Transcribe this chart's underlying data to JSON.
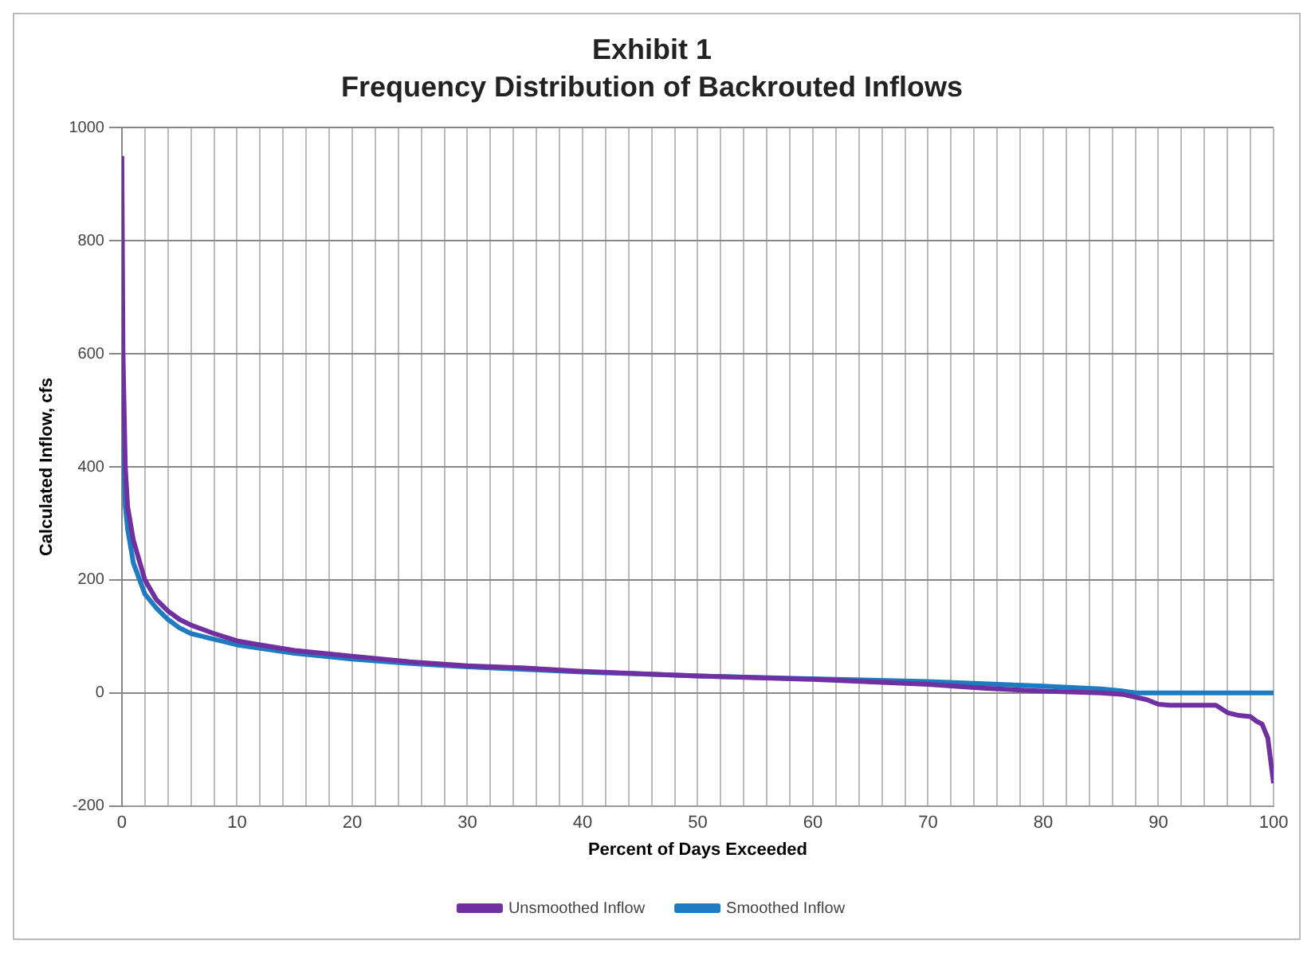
{
  "chart_data": {
    "type": "line",
    "title": "Exhibit 1",
    "subtitle": "Frequency Distribution of Backrouted Inflows",
    "xlabel": "Percent of Days Exceeded",
    "ylabel": "Calculated Inflow, cfs",
    "xlim": [
      0,
      100
    ],
    "ylim": [
      -200,
      1000
    ],
    "yticks": [
      -200,
      0,
      200,
      400,
      600,
      800,
      1000
    ],
    "xticks": [
      0,
      {
        "value": 2,
        "label": null
      },
      {
        "value": 4,
        "label": null
      },
      {
        "value": 6,
        "label": null
      },
      {
        "value": 8,
        "label": null
      },
      10,
      {
        "value": 12,
        "label": null
      },
      {
        "value": 14,
        "label": null
      },
      {
        "value": 16,
        "label": null
      },
      {
        "value": 18,
        "label": null
      },
      20,
      {
        "value": 22,
        "label": null
      },
      {
        "value": 24,
        "label": null
      },
      {
        "value": 26,
        "label": null
      },
      {
        "value": 28,
        "label": null
      },
      30,
      {
        "value": 32,
        "label": null
      },
      {
        "value": 34,
        "label": null
      },
      {
        "value": 36,
        "label": null
      },
      {
        "value": 38,
        "label": null
      },
      40,
      {
        "value": 42,
        "label": null
      },
      {
        "value": 44,
        "label": null
      },
      {
        "value": 46,
        "label": null
      },
      {
        "value": 48,
        "label": null
      },
      50,
      {
        "value": 52,
        "label": null
      },
      {
        "value": 54,
        "label": null
      },
      {
        "value": 56,
        "label": null
      },
      {
        "value": 58,
        "label": null
      },
      60,
      {
        "value": 62,
        "label": null
      },
      {
        "value": 64,
        "label": null
      },
      {
        "value": 66,
        "label": null
      },
      {
        "value": 68,
        "label": null
      },
      70,
      {
        "value": 72,
        "label": null
      },
      {
        "value": 74,
        "label": null
      },
      {
        "value": 76,
        "label": null
      },
      {
        "value": 78,
        "label": null
      },
      80,
      {
        "value": 82,
        "label": null
      },
      {
        "value": 84,
        "label": null
      },
      {
        "value": 86,
        "label": null
      },
      {
        "value": 88,
        "label": null
      },
      90,
      {
        "value": 92,
        "label": null
      },
      {
        "value": 94,
        "label": null
      },
      {
        "value": 96,
        "label": null
      },
      {
        "value": 98,
        "label": null
      },
      100
    ],
    "grid": true,
    "legend": "bottom",
    "marker": "none",
    "line_style": "solid",
    "series": [
      {
        "name": "Unsmoothed Inflow",
        "color": "#7030a0",
        "x": [
          0,
          0.1,
          0.3,
          0.5,
          1,
          2,
          3,
          4,
          5,
          6,
          8,
          10,
          12,
          15,
          20,
          25,
          30,
          35,
          40,
          50,
          60,
          70,
          75,
          80,
          85,
          87,
          89,
          90,
          91,
          95,
          96,
          97,
          98,
          98.5,
          99,
          99.5,
          100
        ],
        "values": [
          950,
          600,
          400,
          330,
          270,
          200,
          165,
          145,
          130,
          120,
          105,
          92,
          85,
          75,
          65,
          55,
          48,
          44,
          38,
          30,
          24,
          15,
          8,
          3,
          0,
          -3,
          -12,
          -20,
          -22,
          -22,
          -35,
          -40,
          -42,
          -50,
          -55,
          -80,
          -160
        ]
      },
      {
        "name": "Smoothed Inflow",
        "color": "#1f7bc0",
        "x": [
          0,
          0.1,
          0.3,
          0.5,
          1,
          2,
          3,
          4,
          5,
          6,
          8,
          10,
          15,
          20,
          25,
          30,
          40,
          50,
          60,
          70,
          80,
          85,
          87,
          88,
          100
        ],
        "values": [
          600,
          450,
          330,
          290,
          230,
          175,
          150,
          130,
          115,
          105,
          95,
          85,
          70,
          60,
          52,
          46,
          37,
          30,
          25,
          20,
          12,
          7,
          3,
          0,
          0
        ]
      }
    ]
  }
}
